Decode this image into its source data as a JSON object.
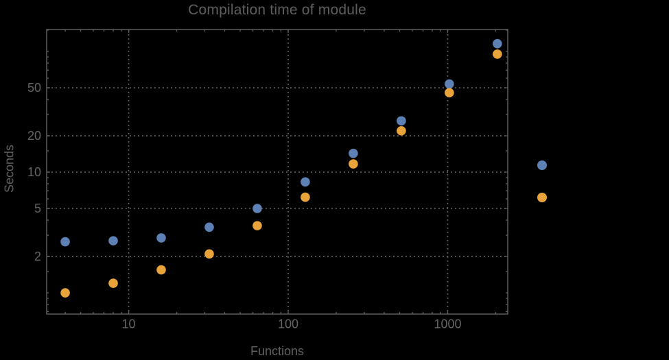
{
  "chart_data": {
    "type": "scatter",
    "title": "Compilation time of module",
    "xlabel": "Functions",
    "ylabel": "Seconds",
    "x_scale": "log",
    "y_scale": "log",
    "xlim": [
      3.06,
      2380
    ],
    "ylim": [
      0.667,
      152
    ],
    "grid": true,
    "x": [
      4,
      8,
      16,
      32,
      64,
      128,
      256,
      512,
      1024,
      2048
    ],
    "series": [
      {
        "name": "blue-series",
        "color": "#5E81B5",
        "values": [
          2.65,
          2.7,
          2.85,
          3.5,
          5.0,
          8.3,
          14.3,
          26.6,
          53.8,
          116
        ]
      },
      {
        "name": "orange-series",
        "color": "#E9A33B",
        "values": [
          1.0,
          1.2,
          1.55,
          2.1,
          3.6,
          6.2,
          11.7,
          22.0,
          45.5,
          95
        ]
      }
    ],
    "x_ticks": {
      "major": [
        {
          "value": 10,
          "label": "10"
        },
        {
          "value": 100,
          "label": "100"
        },
        {
          "value": 1000,
          "label": "1000"
        }
      ],
      "minor": [
        4,
        5,
        6,
        7,
        8,
        9,
        20,
        30,
        40,
        50,
        60,
        70,
        80,
        90,
        200,
        300,
        400,
        500,
        600,
        700,
        800,
        900,
        2000
      ]
    },
    "y_ticks": {
      "major": [
        {
          "value": 2,
          "label": "2"
        },
        {
          "value": 5,
          "label": "5"
        },
        {
          "value": 10,
          "label": "10"
        },
        {
          "value": 20,
          "label": "20"
        },
        {
          "value": 50,
          "label": "50"
        }
      ],
      "minor": [
        0.7,
        0.8,
        0.9,
        1,
        1.5,
        3,
        4,
        6,
        7,
        8,
        9,
        15,
        30,
        40,
        60,
        70,
        80,
        90,
        100,
        150
      ]
    },
    "gridlines": {
      "x": [
        10,
        100,
        1000
      ],
      "y": [
        2,
        5,
        10,
        20,
        50
      ]
    },
    "legend": {
      "position": "right-center",
      "items": [
        {
          "marker_color": "#5E81B5"
        },
        {
          "marker_color": "#E9A33B"
        }
      ]
    },
    "colors": {
      "background": "#000000",
      "frame": "#5e5e5e",
      "grid": "#6e6e6e",
      "text": "#606060"
    }
  }
}
